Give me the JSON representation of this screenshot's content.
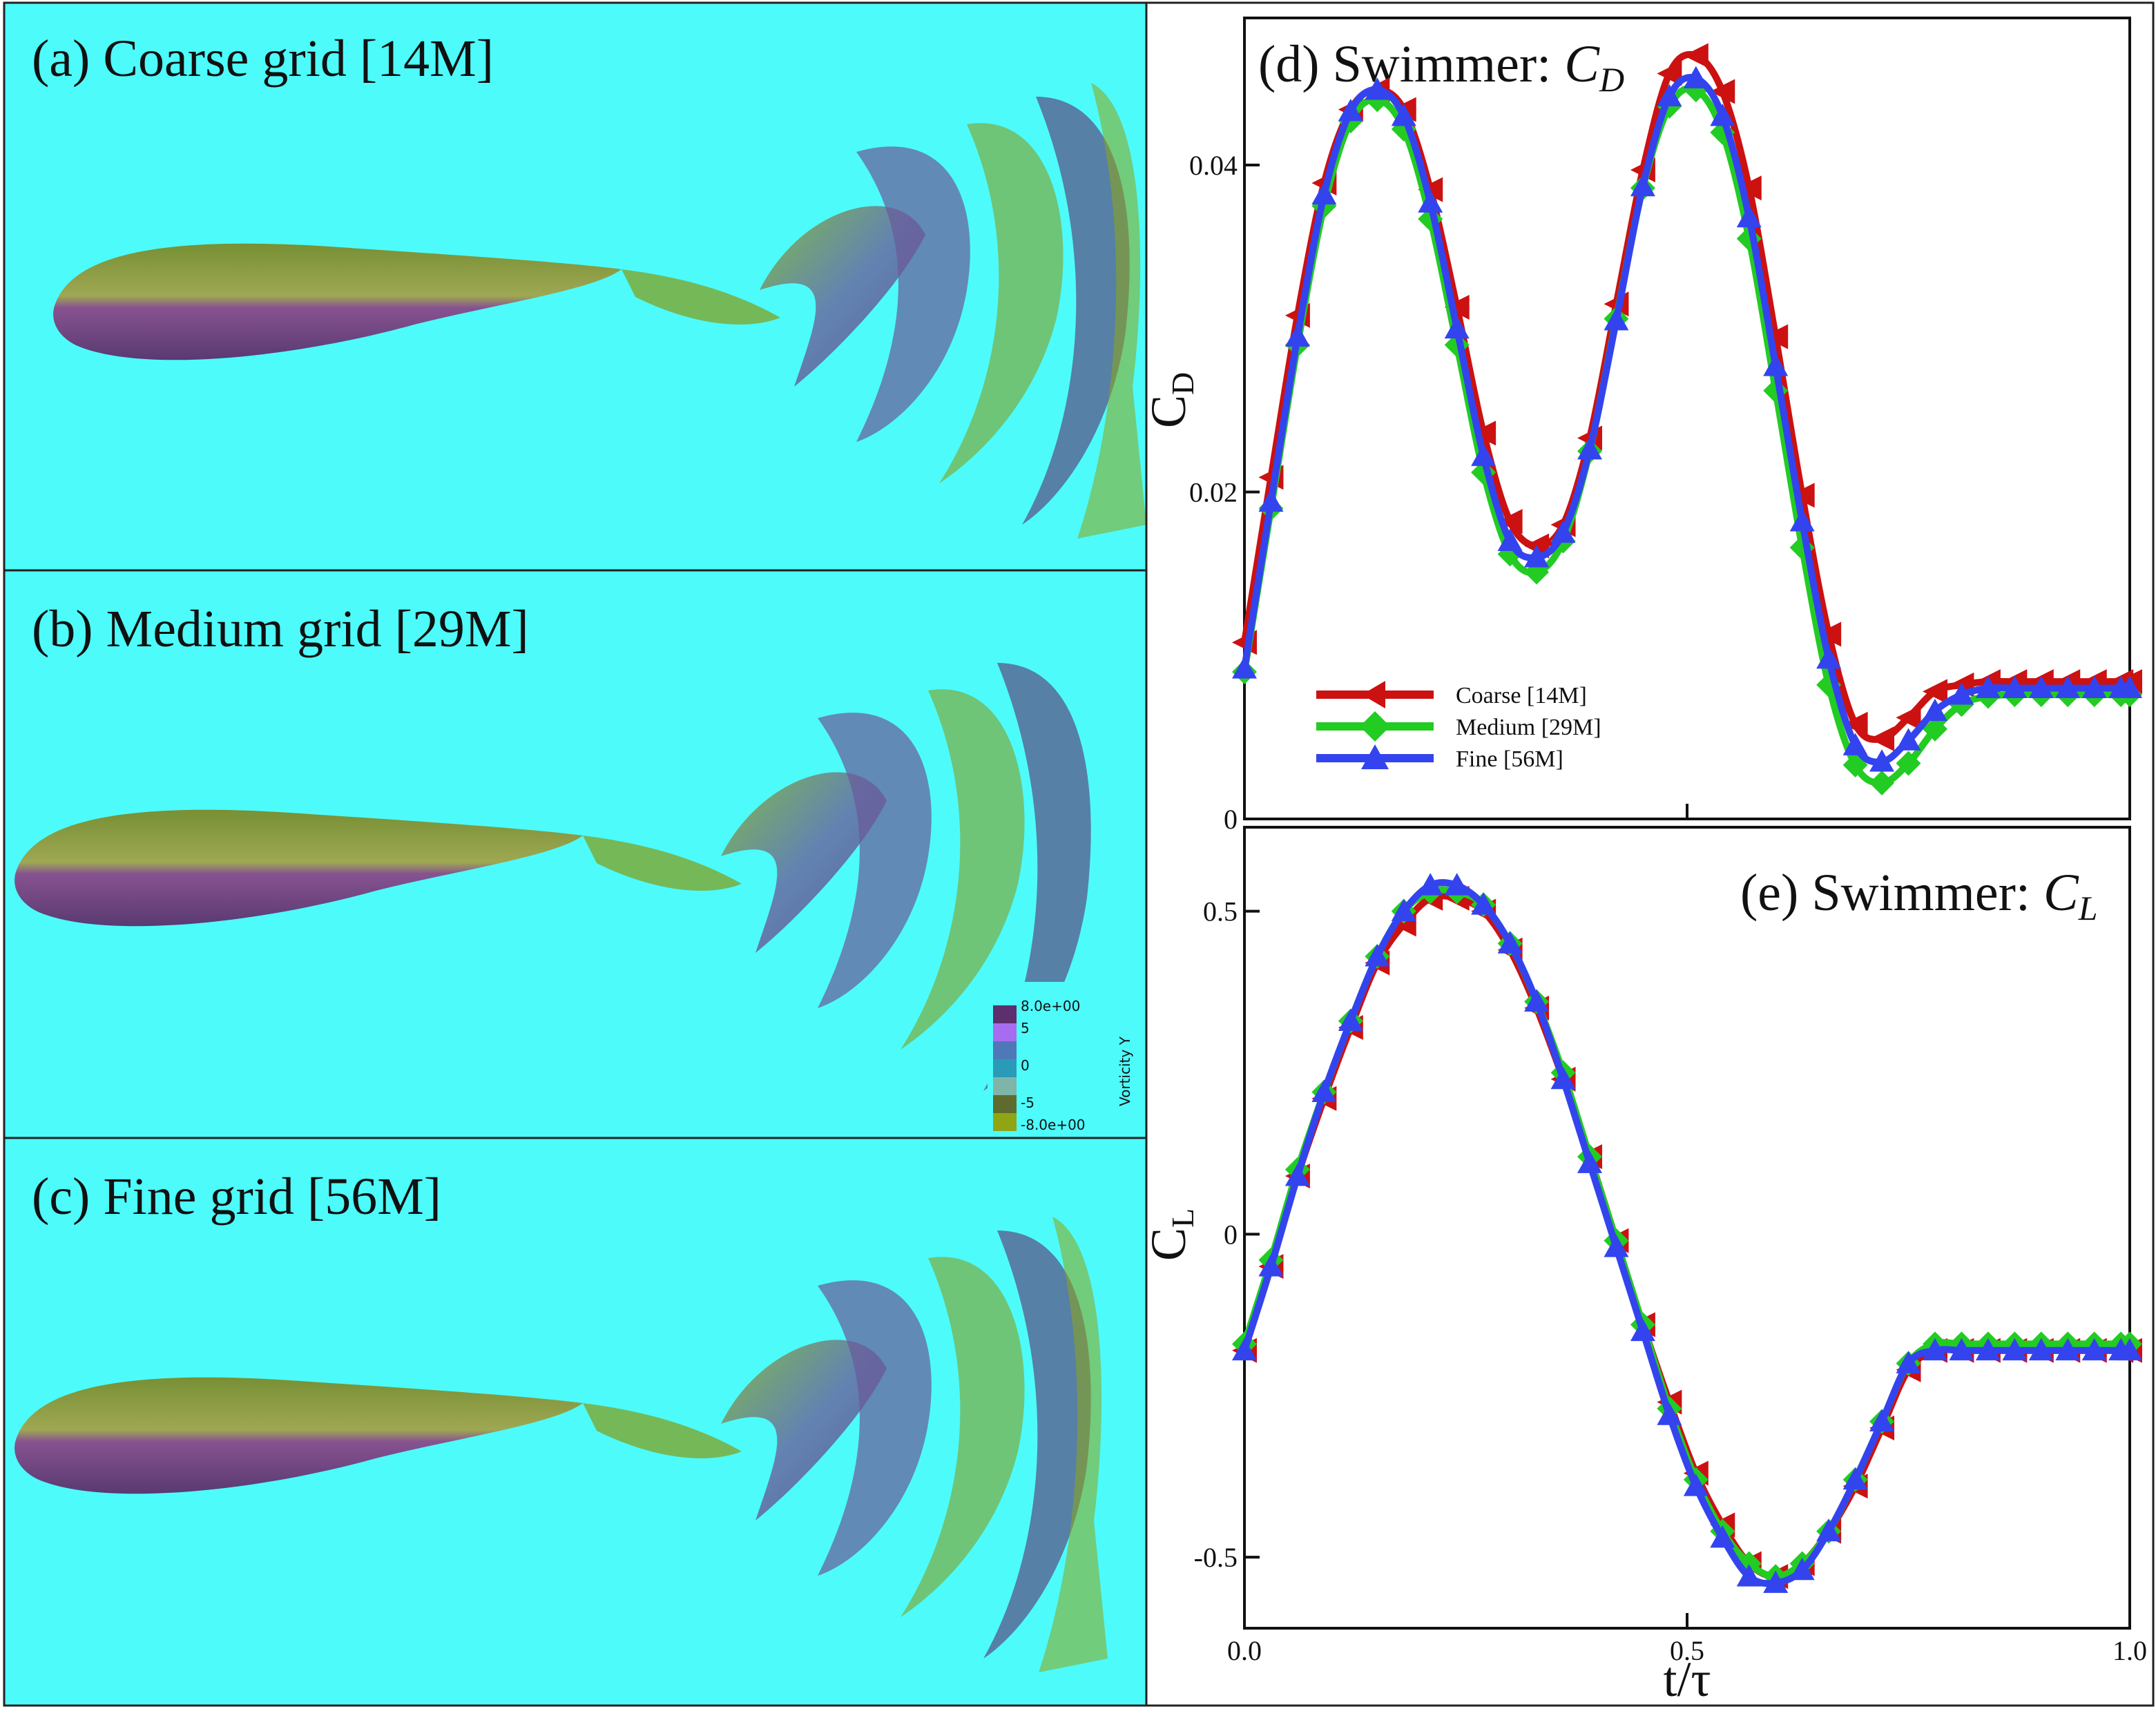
{
  "figure": {
    "panels": [
      {
        "label": "(a) Coarse grid [14M]"
      },
      {
        "label": "(b) Medium grid [29M]"
      },
      {
        "label": "(c) Fine grid [56M]"
      }
    ],
    "colorbar": {
      "title": "Vorticity Y",
      "labels": [
        "8.0e+00",
        "5",
        "0",
        "-5",
        "-8.0e+00"
      ],
      "colors": [
        "#5e2f6e",
        "#a86cf0",
        "#4f78b8",
        "#2a9ab8",
        "#7fb5a8",
        "#5f6b2e",
        "#8fa514"
      ]
    },
    "colors": {
      "background": "#4dfbfb",
      "coarse": "#cc1111",
      "medium": "#22cc22",
      "fine": "#3344ee"
    }
  },
  "chart_data": [
    {
      "type": "line",
      "title_prefix": "(d) Swimmer: ",
      "title_var": "C",
      "title_sub": "D",
      "ylabel": "C",
      "ylabel_sub": "D",
      "xlabel": "",
      "xlim": [
        0,
        1
      ],
      "ylim": [
        0,
        0.049
      ],
      "yticks": [
        0,
        0.02,
        0.04
      ],
      "ytick_labels": [
        "0",
        "0.02",
        "0.04"
      ],
      "xticks": [
        0.5
      ],
      "legend": [
        "Coarse [14M]",
        "Medium [29M]",
        "Fine [56M]"
      ],
      "series": [
        {
          "name": "Coarse [14M]",
          "marker": "left-triangle",
          "x": [
            0,
            0.03,
            0.06,
            0.09,
            0.12,
            0.15,
            0.18,
            0.21,
            0.24,
            0.27,
            0.3,
            0.33,
            0.36,
            0.39,
            0.42,
            0.45,
            0.48,
            0.51,
            0.54,
            0.57,
            0.6,
            0.63,
            0.66,
            0.69,
            0.72,
            0.75,
            0.78,
            0.81,
            0.84,
            0.87,
            0.9,
            0.93,
            0.96,
            0.99,
            1.0
          ],
          "y": [
            0.0108,
            0.0209,
            0.0308,
            0.0389,
            0.0434,
            0.0446,
            0.0434,
            0.0385,
            0.0313,
            0.0236,
            0.0182,
            0.0167,
            0.018,
            0.0233,
            0.0315,
            0.0397,
            0.0456,
            0.0467,
            0.0445,
            0.0386,
            0.0295,
            0.0198,
            0.0113,
            0.0058,
            0.0049,
            0.0062,
            0.0078,
            0.0082,
            0.0084,
            0.0084,
            0.0084,
            0.0084,
            0.0084,
            0.0084,
            0.0084
          ]
        },
        {
          "name": "Medium [29M]",
          "marker": "diamond",
          "x": [
            0,
            0.03,
            0.06,
            0.09,
            0.12,
            0.15,
            0.18,
            0.21,
            0.24,
            0.27,
            0.3,
            0.33,
            0.36,
            0.39,
            0.42,
            0.45,
            0.48,
            0.51,
            0.54,
            0.57,
            0.6,
            0.63,
            0.66,
            0.69,
            0.72,
            0.75,
            0.78,
            0.81,
            0.84,
            0.87,
            0.9,
            0.93,
            0.96,
            0.99,
            1.0
          ],
          "y": [
            0.009,
            0.019,
            0.029,
            0.0375,
            0.0427,
            0.044,
            0.0422,
            0.0367,
            0.029,
            0.0212,
            0.0162,
            0.0151,
            0.017,
            0.0225,
            0.0306,
            0.0386,
            0.0436,
            0.0446,
            0.042,
            0.0355,
            0.0262,
            0.0166,
            0.0082,
            0.0033,
            0.0022,
            0.0034,
            0.0055,
            0.007,
            0.0075,
            0.0076,
            0.0076,
            0.0076,
            0.0076,
            0.0076,
            0.0076
          ]
        },
        {
          "name": "Fine [56M]",
          "marker": "up-triangle",
          "x": [
            0,
            0.03,
            0.06,
            0.09,
            0.12,
            0.15,
            0.18,
            0.21,
            0.24,
            0.27,
            0.3,
            0.33,
            0.36,
            0.39,
            0.42,
            0.45,
            0.48,
            0.51,
            0.54,
            0.57,
            0.6,
            0.63,
            0.66,
            0.69,
            0.72,
            0.75,
            0.78,
            0.81,
            0.84,
            0.87,
            0.9,
            0.93,
            0.96,
            0.99,
            1.0
          ],
          "y": [
            0.0092,
            0.0194,
            0.0295,
            0.0382,
            0.0433,
            0.0446,
            0.043,
            0.0377,
            0.03,
            0.0222,
            0.017,
            0.016,
            0.0175,
            0.0226,
            0.0305,
            0.0387,
            0.0442,
            0.0453,
            0.043,
            0.0368,
            0.0277,
            0.0182,
            0.0098,
            0.0045,
            0.0035,
            0.0048,
            0.0066,
            0.0076,
            0.008,
            0.008,
            0.008,
            0.008,
            0.008,
            0.008,
            0.008
          ]
        }
      ]
    },
    {
      "type": "line",
      "title_prefix": "(e) Swimmer: ",
      "title_var": "C",
      "title_sub": "L",
      "ylabel": "C",
      "ylabel_sub": "L",
      "xlabel": "t/τ",
      "xlim": [
        0,
        1
      ],
      "ylim": [
        -0.61,
        0.63
      ],
      "yticks": [
        -0.5,
        0,
        0.5
      ],
      "ytick_labels": [
        "-0.5",
        "0",
        "0.5"
      ],
      "xticks": [
        0,
        0.5,
        1.0
      ],
      "xtick_labels": [
        "0.0",
        "0.5",
        "1.0"
      ],
      "series": [
        {
          "name": "Coarse [14M]",
          "marker": "left-triangle",
          "x": [
            0,
            0.03,
            0.06,
            0.09,
            0.12,
            0.15,
            0.18,
            0.21,
            0.24,
            0.27,
            0.3,
            0.33,
            0.36,
            0.39,
            0.42,
            0.45,
            0.48,
            0.51,
            0.54,
            0.57,
            0.6,
            0.63,
            0.66,
            0.69,
            0.72,
            0.75,
            0.78,
            0.81,
            0.84,
            0.87,
            0.9,
            0.93,
            0.96,
            0.99,
            1.0
          ],
          "y": [
            -0.18,
            -0.05,
            0.09,
            0.21,
            0.32,
            0.42,
            0.48,
            0.52,
            0.52,
            0.5,
            0.44,
            0.35,
            0.24,
            0.12,
            -0.01,
            -0.14,
            -0.26,
            -0.37,
            -0.45,
            -0.51,
            -0.53,
            -0.51,
            -0.46,
            -0.39,
            -0.3,
            -0.21,
            -0.18,
            -0.18,
            -0.18,
            -0.18,
            -0.18,
            -0.18,
            -0.18,
            -0.18,
            -0.18
          ]
        },
        {
          "name": "Medium [29M]",
          "marker": "diamond",
          "x": [
            0,
            0.03,
            0.06,
            0.09,
            0.12,
            0.15,
            0.18,
            0.21,
            0.24,
            0.27,
            0.3,
            0.33,
            0.36,
            0.39,
            0.42,
            0.45,
            0.48,
            0.51,
            0.54,
            0.57,
            0.6,
            0.63,
            0.66,
            0.69,
            0.72,
            0.75,
            0.78,
            0.81,
            0.84,
            0.87,
            0.9,
            0.93,
            0.96,
            0.99,
            1.0
          ],
          "y": [
            -0.17,
            -0.04,
            0.1,
            0.22,
            0.33,
            0.43,
            0.5,
            0.53,
            0.53,
            0.51,
            0.45,
            0.36,
            0.25,
            0.12,
            -0.01,
            -0.14,
            -0.27,
            -0.38,
            -0.46,
            -0.51,
            -0.53,
            -0.51,
            -0.46,
            -0.38,
            -0.29,
            -0.2,
            -0.17,
            -0.17,
            -0.17,
            -0.17,
            -0.17,
            -0.17,
            -0.17,
            -0.17,
            -0.17
          ]
        },
        {
          "name": "Fine [56M]",
          "marker": "up-triangle",
          "x": [
            0,
            0.03,
            0.06,
            0.09,
            0.12,
            0.15,
            0.18,
            0.21,
            0.24,
            0.27,
            0.3,
            0.33,
            0.36,
            0.39,
            0.42,
            0.45,
            0.48,
            0.51,
            0.54,
            0.57,
            0.6,
            0.63,
            0.66,
            0.69,
            0.72,
            0.75,
            0.78,
            0.81,
            0.84,
            0.87,
            0.9,
            0.93,
            0.96,
            0.99,
            1.0
          ],
          "y": [
            -0.18,
            -0.05,
            0.09,
            0.22,
            0.33,
            0.43,
            0.5,
            0.54,
            0.54,
            0.51,
            0.45,
            0.36,
            0.24,
            0.11,
            -0.02,
            -0.15,
            -0.28,
            -0.39,
            -0.47,
            -0.53,
            -0.54,
            -0.52,
            -0.46,
            -0.38,
            -0.29,
            -0.2,
            -0.18,
            -0.18,
            -0.18,
            -0.18,
            -0.18,
            -0.18,
            -0.18,
            -0.18,
            -0.18
          ]
        }
      ]
    }
  ]
}
